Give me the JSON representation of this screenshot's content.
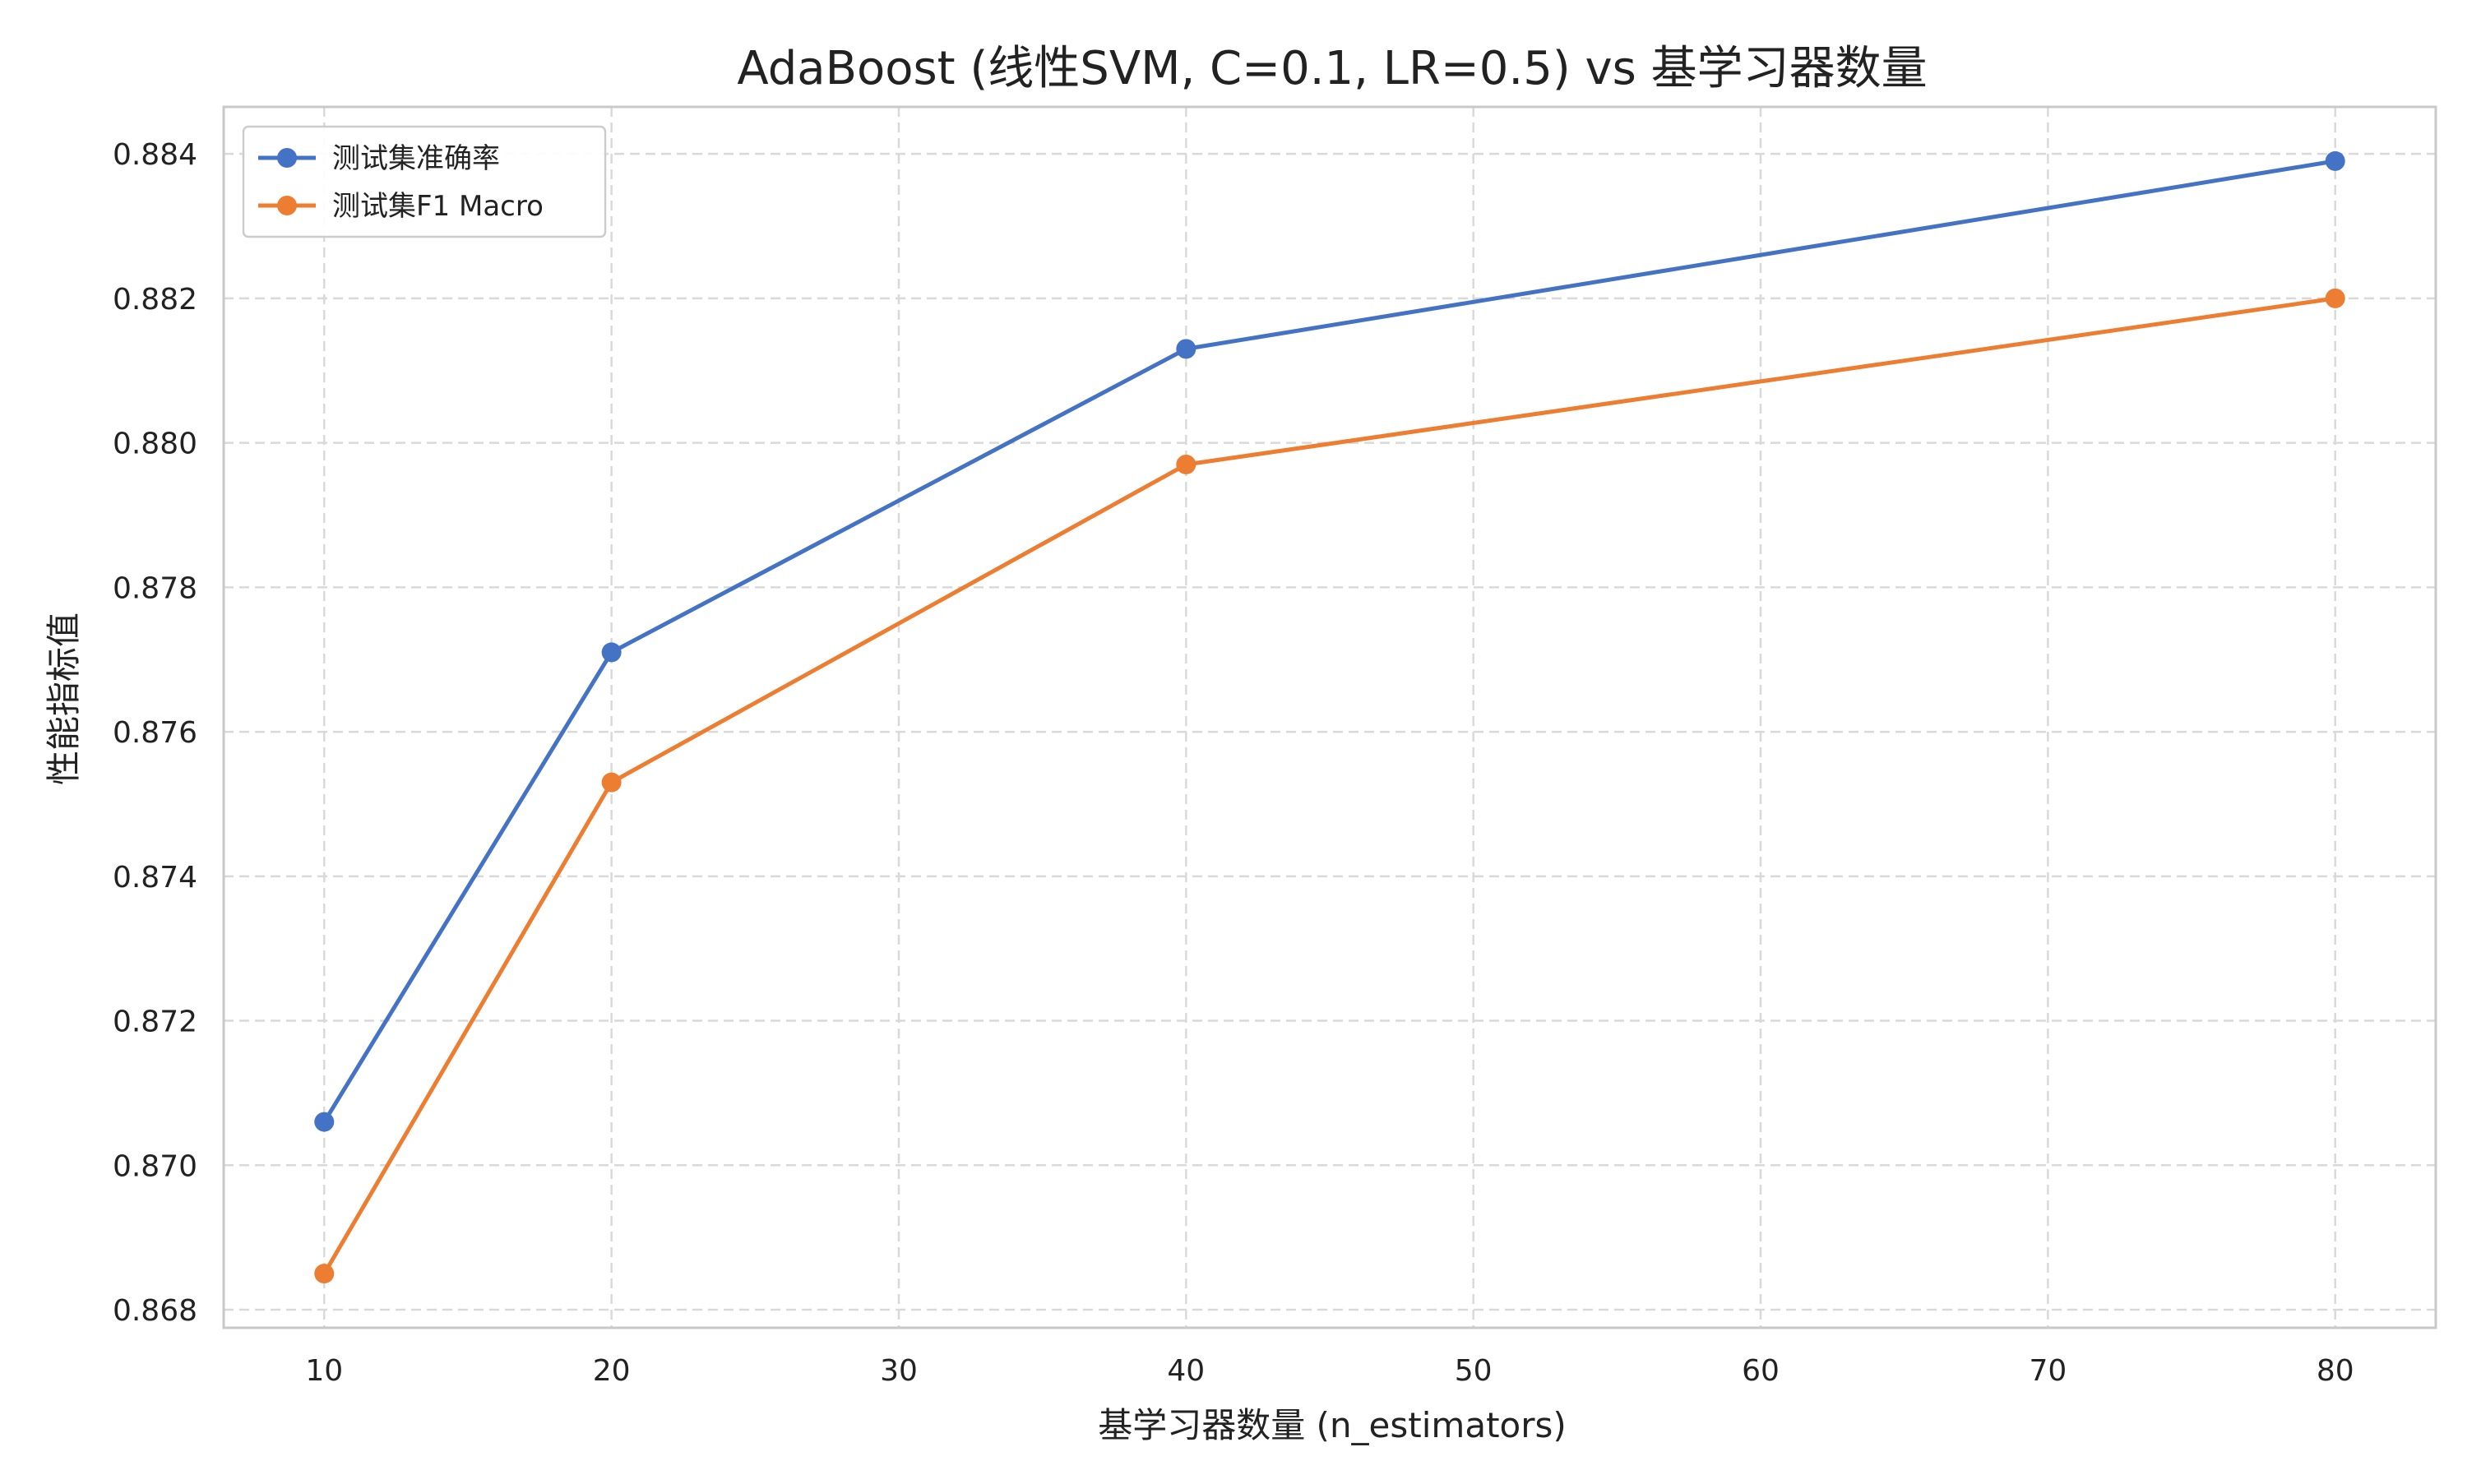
{
  "chart_data": {
    "type": "line",
    "title": "AdaBoost (线性SVM, C=0.1, LR=0.5) vs 基学习器数量",
    "xlabel": "基学习器数量 (n_estimators)",
    "ylabel": "性能指标值",
    "x": [
      10,
      20,
      40,
      80
    ],
    "xlim": [
      6.5,
      83.5
    ],
    "ylim": [
      0.86775,
      0.88465
    ],
    "x_ticks": [
      10,
      20,
      30,
      40,
      50,
      60,
      70,
      80
    ],
    "x_tick_labels": [
      "10",
      "20",
      "30",
      "40",
      "50",
      "60",
      "70",
      "80"
    ],
    "y_ticks": [
      0.868,
      0.87,
      0.872,
      0.874,
      0.876,
      0.878,
      0.88,
      0.882,
      0.884
    ],
    "y_tick_labels": [
      "0.868",
      "0.870",
      "0.872",
      "0.874",
      "0.876",
      "0.878",
      "0.880",
      "0.882",
      "0.884"
    ],
    "grid": true,
    "legend_position": "upper-left",
    "series": [
      {
        "name": "测试集准确率",
        "values": [
          0.8706,
          0.8771,
          0.8813,
          0.8839
        ],
        "color": "#4472c4",
        "marker": "circle"
      },
      {
        "name": "测试集F1 Macro",
        "values": [
          0.8685,
          0.8753,
          0.8797,
          0.882
        ],
        "color": "#ed7d31",
        "marker": "circle"
      }
    ]
  }
}
